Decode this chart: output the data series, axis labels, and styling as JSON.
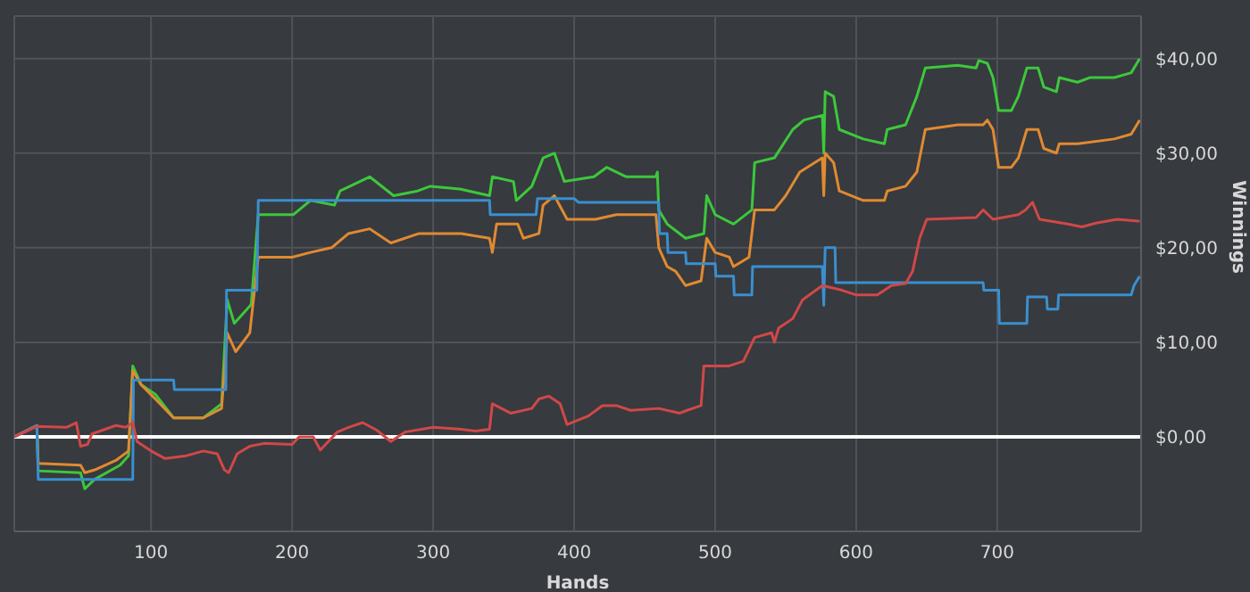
{
  "chart_data": {
    "type": "line",
    "xlabel": "Hands",
    "ylabel": "Winnings",
    "xlim": [
      3,
      802
    ],
    "xticks": [
      100,
      200,
      300,
      400,
      500,
      600,
      700
    ],
    "ylim": [
      -10,
      44.5
    ],
    "yticks": [
      {
        "value": 0,
        "label": "$0,00"
      },
      {
        "value": 10,
        "label": "$10,00"
      },
      {
        "value": 20,
        "label": "$20,00"
      },
      {
        "value": 30,
        "label": "$30,00"
      },
      {
        "value": 40,
        "label": "$40,00"
      }
    ],
    "grid": true,
    "legend": false,
    "marker": "none",
    "ref_lines": [
      {
        "axis": "y",
        "value": 0,
        "color": "#ffffff"
      }
    ],
    "series": [
      {
        "color": "#3cc83c",
        "x": [
          3,
          19,
          20,
          50,
          53,
          60,
          78,
          84,
          87,
          93,
          103,
          116,
          137,
          150,
          154,
          159,
          171,
          176,
          201,
          213,
          230,
          234,
          255,
          272,
          289,
          298,
          319,
          340,
          342,
          357,
          359,
          370,
          378,
          386,
          393,
          414,
          423,
          437,
          458,
          459,
          460,
          466,
          479,
          492,
          494,
          500,
          513,
          526,
          528,
          542,
          555,
          563,
          576,
          577,
          578,
          584,
          588,
          605,
          620,
          622,
          635,
          643,
          649,
          672,
          685,
          687,
          693,
          697,
          701,
          710,
          715,
          721,
          729,
          733,
          742,
          744,
          757,
          766,
          783,
          795,
          801
        ],
        "values": [
          0,
          1.2,
          -3.6,
          -3.8,
          -5.5,
          -4.5,
          -3,
          -2,
          7.5,
          5.5,
          4.5,
          2,
          2,
          3.5,
          14.5,
          12,
          14,
          23.5,
          23.5,
          25,
          24.5,
          26,
          27.5,
          25.5,
          26,
          26.5,
          26.2,
          25.5,
          27.5,
          27,
          25,
          26.5,
          29.5,
          30,
          27,
          27.5,
          28.5,
          27.5,
          27.5,
          28,
          24,
          22.5,
          21,
          21.5,
          25.5,
          23.5,
          22.5,
          24,
          29,
          29.5,
          32.5,
          33.5,
          34,
          30,
          36.5,
          36,
          32.5,
          31.5,
          31,
          32.5,
          33,
          36,
          39,
          39.3,
          39,
          39.8,
          39.5,
          38,
          34.5,
          34.5,
          36,
          39,
          39,
          37,
          36.5,
          38,
          37.5,
          38,
          38,
          38.5,
          40
        ]
      },
      {
        "color": "#e08a32",
        "x": [
          3,
          19,
          20,
          50,
          53,
          60,
          75,
          84,
          87,
          93,
          103,
          116,
          137,
          150,
          154,
          160,
          170,
          176,
          200,
          213,
          228,
          240,
          255,
          270,
          290,
          320,
          340,
          342,
          345,
          360,
          364,
          375,
          378,
          386,
          395,
          415,
          430,
          437,
          458,
          460,
          466,
          472,
          479,
          490,
          494,
          500,
          510,
          513,
          524,
          528,
          542,
          550,
          560,
          576,
          577,
          578,
          584,
          588,
          605,
          620,
          622,
          635,
          643,
          649,
          672,
          690,
          693,
          697,
          701,
          710,
          715,
          721,
          729,
          733,
          742,
          744,
          757,
          783,
          795,
          801
        ],
        "values": [
          0,
          1.2,
          -2.8,
          -3,
          -3.8,
          -3.5,
          -2.5,
          -1.5,
          7,
          5.5,
          4,
          2,
          2,
          3,
          11,
          9,
          11,
          19,
          19,
          19.5,
          20,
          21.5,
          22,
          20.5,
          21.5,
          21.5,
          21,
          19.5,
          22.5,
          22.5,
          21,
          21.5,
          24.5,
          25.5,
          23,
          23,
          23.5,
          23.5,
          23.5,
          20,
          18,
          17.5,
          16,
          16.5,
          21,
          19.5,
          19,
          18,
          19,
          24,
          24,
          25.5,
          28,
          29.5,
          25.5,
          30,
          29,
          26,
          25,
          25,
          26,
          26.5,
          28,
          32.5,
          33,
          33,
          33.5,
          32.5,
          28.5,
          28.5,
          29.5,
          32.5,
          32.5,
          30.5,
          30,
          31,
          31,
          31.5,
          32,
          33.5
        ]
      },
      {
        "color": "#3a8fd0",
        "x": [
          3,
          19,
          20,
          87,
          87.5,
          116,
          116.5,
          153,
          153.5,
          175,
          176,
          340,
          340.5,
          373,
          374,
          400,
          403,
          460,
          460.5,
          466,
          466.5,
          479,
          479.5,
          500,
          500.5,
          513,
          513.5,
          526,
          526.5,
          576,
          577,
          578,
          585,
          585.5,
          690,
          690.5,
          701,
          701.5,
          721,
          721.5,
          735,
          735.5,
          743,
          743.5,
          795,
          797,
          801
        ],
        "values": [
          0,
          1.2,
          -4.5,
          -4.5,
          6,
          6,
          5,
          5,
          15.5,
          15.5,
          25,
          25,
          23.5,
          23.5,
          25.2,
          25.2,
          24.8,
          24.8,
          21.5,
          21.5,
          19.5,
          19.5,
          18.3,
          18.3,
          17,
          17,
          15,
          15,
          18,
          18,
          13.9,
          20,
          20,
          16.3,
          16.3,
          15.5,
          15.5,
          12,
          12,
          14.8,
          14.8,
          13.5,
          13.5,
          15,
          15,
          16,
          17
        ]
      },
      {
        "color": "#d04848",
        "x": [
          3,
          19,
          40,
          47,
          50,
          55,
          58,
          75,
          82,
          87,
          90,
          100,
          110,
          125,
          137,
          147,
          152,
          155,
          161,
          170,
          180,
          200,
          205,
          215,
          220,
          232,
          240,
          250,
          260,
          270,
          280,
          300,
          320,
          330,
          340,
          342,
          355,
          370,
          375,
          382,
          390,
          395,
          410,
          420,
          430,
          440,
          460,
          475,
          480,
          490,
          492,
          510,
          520,
          528,
          540,
          542,
          545,
          555,
          562,
          576,
          590,
          600,
          615,
          620,
          625,
          635,
          640,
          645,
          650,
          685,
          690,
          697,
          715,
          720,
          725,
          730,
          750,
          760,
          770,
          785,
          801
        ],
        "values": [
          0,
          1.1,
          1,
          1.5,
          -1,
          -0.8,
          0.3,
          1.2,
          1,
          1.5,
          -0.5,
          -1.5,
          -2.3,
          -2,
          -1.5,
          -1.8,
          -3.5,
          -3.8,
          -1.8,
          -1,
          -0.7,
          -0.8,
          0,
          0,
          -1.4,
          0.5,
          1,
          1.5,
          0.7,
          -0.5,
          0.5,
          1,
          0.8,
          0.6,
          0.8,
          3.5,
          2.5,
          3,
          4,
          4.3,
          3.5,
          1.3,
          2.2,
          3.3,
          3.3,
          2.8,
          3,
          2.5,
          2.8,
          3.3,
          7.5,
          7.5,
          8,
          10.5,
          11,
          10,
          11.5,
          12.5,
          14.5,
          16,
          15.5,
          15,
          15,
          15.5,
          16,
          16.2,
          17.5,
          21,
          23,
          23.2,
          24,
          23,
          23.5,
          24,
          24.8,
          23,
          22.5,
          22.2,
          22.6,
          23,
          22.8
        ]
      }
    ]
  }
}
